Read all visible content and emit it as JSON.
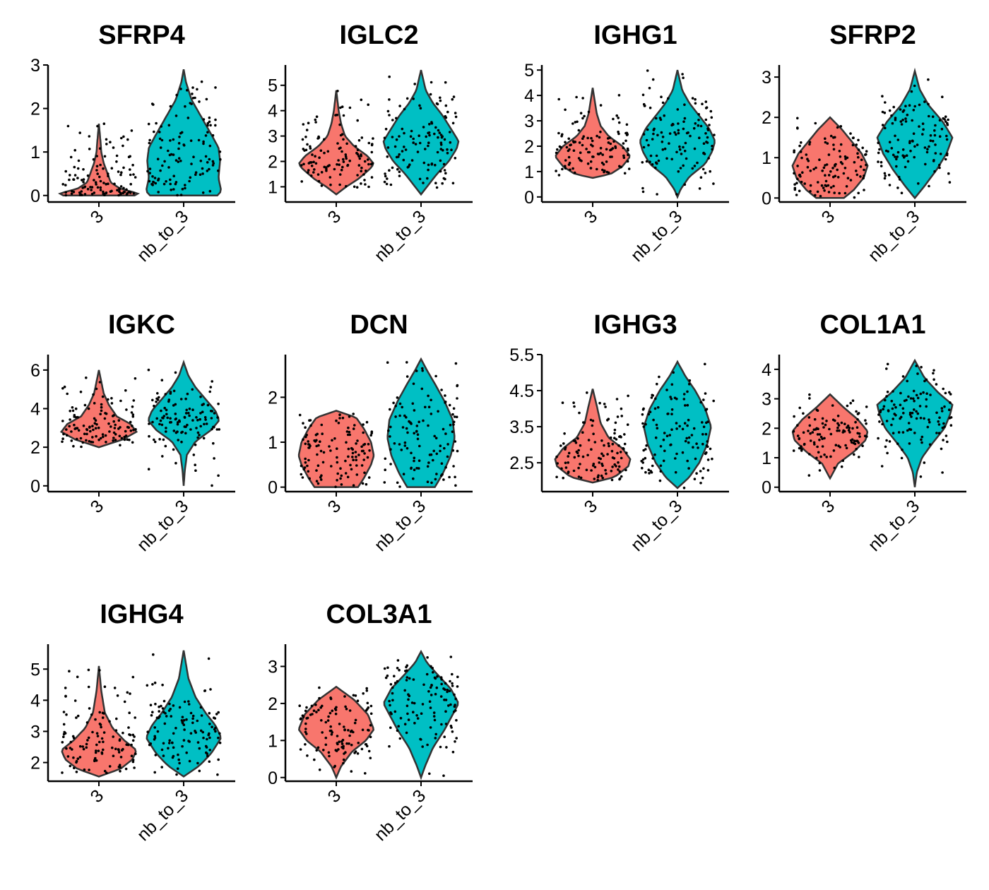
{
  "colors": {
    "group_3": "#F8766D",
    "group_nb_to_3": "#00BFC4",
    "points": "#000000"
  },
  "chart_data": [
    {
      "type": "violin",
      "title": "SFRP4",
      "categories": [
        "3",
        "nb_to_3"
      ],
      "ylim": [
        -0.15,
        3.0
      ],
      "yticks": [
        {
          "v": 0,
          "label": "0"
        },
        {
          "v": 1,
          "label": "1"
        },
        {
          "v": 2,
          "label": "2"
        },
        {
          "v": 3,
          "label": "3"
        }
      ],
      "series": [
        {
          "min": 0,
          "max": 1.65,
          "shape": [
            [
              0,
              0.9
            ],
            [
              0.05,
              1.0
            ],
            [
              0.15,
              0.55
            ],
            [
              0.3,
              0.3
            ],
            [
              0.5,
              0.22
            ],
            [
              0.75,
              0.12
            ],
            [
              1.0,
              0.06
            ],
            [
              1.25,
              0.04
            ],
            [
              1.65,
              0
            ]
          ]
        },
        {
          "min": 0,
          "max": 2.9,
          "shape": [
            [
              0,
              0.85
            ],
            [
              0.1,
              0.95
            ],
            [
              0.4,
              0.88
            ],
            [
              0.8,
              0.92
            ],
            [
              1.1,
              0.88
            ],
            [
              1.4,
              0.7
            ],
            [
              1.8,
              0.45
            ],
            [
              2.2,
              0.2
            ],
            [
              2.6,
              0.06
            ],
            [
              2.9,
              0
            ]
          ]
        }
      ]
    },
    {
      "type": "violin",
      "title": "IGLC2",
      "categories": [
        "3",
        "nb_to_3"
      ],
      "ylim": [
        0.4,
        5.8
      ],
      "yticks": [
        {
          "v": 1,
          "label": "1"
        },
        {
          "v": 2,
          "label": "2"
        },
        {
          "v": 3,
          "label": "3"
        },
        {
          "v": 4,
          "label": "4"
        },
        {
          "v": 5,
          "label": "5"
        }
      ],
      "series": [
        {
          "min": 0.7,
          "max": 4.8,
          "shape": [
            [
              0.7,
              0
            ],
            [
              1.0,
              0.25
            ],
            [
              1.3,
              0.55
            ],
            [
              1.7,
              0.85
            ],
            [
              1.9,
              0.95
            ],
            [
              2.2,
              0.8
            ],
            [
              2.6,
              0.45
            ],
            [
              3.0,
              0.22
            ],
            [
              3.5,
              0.12
            ],
            [
              4.0,
              0.06
            ],
            [
              4.8,
              0
            ]
          ]
        },
        {
          "min": 0.7,
          "max": 5.6,
          "shape": [
            [
              0.7,
              0
            ],
            [
              1.0,
              0.15
            ],
            [
              1.5,
              0.4
            ],
            [
              2.0,
              0.7
            ],
            [
              2.5,
              0.9
            ],
            [
              2.8,
              0.95
            ],
            [
              3.3,
              0.75
            ],
            [
              3.8,
              0.55
            ],
            [
              4.3,
              0.3
            ],
            [
              4.8,
              0.12
            ],
            [
              5.6,
              0
            ]
          ]
        }
      ]
    },
    {
      "type": "violin",
      "title": "IGHG1",
      "categories": [
        "3",
        "nb_to_3"
      ],
      "ylim": [
        -0.2,
        5.2
      ],
      "yticks": [
        {
          "v": 0,
          "label": "0"
        },
        {
          "v": 1,
          "label": "1"
        },
        {
          "v": 2,
          "label": "2"
        },
        {
          "v": 3,
          "label": "3"
        },
        {
          "v": 4,
          "label": "4"
        },
        {
          "v": 5,
          "label": "5"
        }
      ],
      "series": [
        {
          "min": 0.75,
          "max": 4.3,
          "shape": [
            [
              0.75,
              0
            ],
            [
              0.9,
              0.45
            ],
            [
              1.2,
              0.75
            ],
            [
              1.6,
              0.95
            ],
            [
              2.0,
              0.75
            ],
            [
              2.4,
              0.4
            ],
            [
              2.8,
              0.2
            ],
            [
              3.3,
              0.1
            ],
            [
              4.3,
              0
            ]
          ]
        },
        {
          "min": 0,
          "max": 5.0,
          "shape": [
            [
              0,
              0
            ],
            [
              0.3,
              0.08
            ],
            [
              0.8,
              0.3
            ],
            [
              1.3,
              0.7
            ],
            [
              1.8,
              0.88
            ],
            [
              2.2,
              0.95
            ],
            [
              2.7,
              0.8
            ],
            [
              3.2,
              0.55
            ],
            [
              3.7,
              0.3
            ],
            [
              4.2,
              0.12
            ],
            [
              5.0,
              0
            ]
          ]
        }
      ]
    },
    {
      "type": "violin",
      "title": "SFRP2",
      "categories": [
        "3",
        "nb_to_3"
      ],
      "ylim": [
        -0.1,
        3.3
      ],
      "yticks": [
        {
          "v": 0,
          "label": "0"
        },
        {
          "v": 1,
          "label": "1"
        },
        {
          "v": 2,
          "label": "2"
        },
        {
          "v": 3,
          "label": "3"
        }
      ],
      "series": [
        {
          "min": 0,
          "max": 2.0,
          "shape": [
            [
              0,
              0.35
            ],
            [
              0.2,
              0.6
            ],
            [
              0.5,
              0.85
            ],
            [
              0.8,
              0.95
            ],
            [
              1.1,
              0.8
            ],
            [
              1.4,
              0.55
            ],
            [
              1.7,
              0.3
            ],
            [
              2.0,
              0
            ]
          ]
        },
        {
          "min": 0,
          "max": 3.15,
          "shape": [
            [
              0,
              0
            ],
            [
              0.3,
              0.25
            ],
            [
              0.7,
              0.55
            ],
            [
              1.1,
              0.8
            ],
            [
              1.5,
              0.95
            ],
            [
              1.9,
              0.7
            ],
            [
              2.3,
              0.35
            ],
            [
              2.7,
              0.12
            ],
            [
              3.15,
              0
            ]
          ]
        }
      ]
    },
    {
      "type": "violin",
      "title": "IGKC",
      "categories": [
        "3",
        "nb_to_3"
      ],
      "ylim": [
        -0.3,
        6.8
      ],
      "yticks": [
        {
          "v": 0,
          "label": "0"
        },
        {
          "v": 2,
          "label": "2"
        },
        {
          "v": 4,
          "label": "4"
        },
        {
          "v": 6,
          "label": "6"
        }
      ],
      "series": [
        {
          "min": 2.0,
          "max": 6.0,
          "shape": [
            [
              2.0,
              0
            ],
            [
              2.4,
              0.6
            ],
            [
              2.8,
              0.95
            ],
            [
              3.2,
              0.8
            ],
            [
              3.6,
              0.45
            ],
            [
              4.2,
              0.25
            ],
            [
              4.8,
              0.12
            ],
            [
              5.5,
              0.05
            ],
            [
              6.0,
              0
            ]
          ]
        },
        {
          "min": 0,
          "max": 6.4,
          "shape": [
            [
              0,
              0
            ],
            [
              0.8,
              0.03
            ],
            [
              1.6,
              0.08
            ],
            [
              2.3,
              0.3
            ],
            [
              2.9,
              0.7
            ],
            [
              3.4,
              0.9
            ],
            [
              3.9,
              0.8
            ],
            [
              4.5,
              0.55
            ],
            [
              5.1,
              0.3
            ],
            [
              5.7,
              0.12
            ],
            [
              6.4,
              0
            ]
          ]
        }
      ]
    },
    {
      "type": "violin",
      "title": "DCN",
      "categories": [
        "3",
        "nb_to_3"
      ],
      "ylim": [
        -0.1,
        2.95
      ],
      "yticks": [
        {
          "v": 0,
          "label": "0"
        },
        {
          "v": 1,
          "label": "1"
        },
        {
          "v": 2,
          "label": "2"
        }
      ],
      "series": [
        {
          "min": 0,
          "max": 1.7,
          "shape": [
            [
              0,
              0.55
            ],
            [
              0.2,
              0.7
            ],
            [
              0.5,
              0.88
            ],
            [
              0.7,
              0.95
            ],
            [
              1.0,
              0.88
            ],
            [
              1.3,
              0.7
            ],
            [
              1.55,
              0.5
            ],
            [
              1.7,
              0
            ]
          ]
        },
        {
          "min": 0,
          "max": 2.85,
          "shape": [
            [
              0,
              0.35
            ],
            [
              0.3,
              0.55
            ],
            [
              0.7,
              0.75
            ],
            [
              1.1,
              0.85
            ],
            [
              1.5,
              0.8
            ],
            [
              1.9,
              0.6
            ],
            [
              2.3,
              0.35
            ],
            [
              2.6,
              0.15
            ],
            [
              2.85,
              0
            ]
          ]
        }
      ]
    },
    {
      "type": "violin",
      "title": "IGHG3",
      "categories": [
        "3",
        "nb_to_3"
      ],
      "ylim": [
        1.7,
        5.5
      ],
      "yticks": [
        {
          "v": 2.5,
          "label": "2.5"
        },
        {
          "v": 3.5,
          "label": "3.5"
        },
        {
          "v": 4.5,
          "label": "4.5"
        },
        {
          "v": 5.5,
          "label": "5.5"
        }
      ],
      "series": [
        {
          "min": 1.95,
          "max": 4.55,
          "shape": [
            [
              1.95,
              0
            ],
            [
              2.1,
              0.55
            ],
            [
              2.4,
              0.9
            ],
            [
              2.6,
              0.95
            ],
            [
              2.9,
              0.75
            ],
            [
              3.2,
              0.4
            ],
            [
              3.6,
              0.2
            ],
            [
              4.0,
              0.12
            ],
            [
              4.55,
              0
            ]
          ]
        },
        {
          "min": 1.8,
          "max": 5.3,
          "shape": [
            [
              1.8,
              0
            ],
            [
              2.1,
              0.3
            ],
            [
              2.5,
              0.55
            ],
            [
              3.0,
              0.75
            ],
            [
              3.5,
              0.85
            ],
            [
              4.0,
              0.7
            ],
            [
              4.5,
              0.45
            ],
            [
              4.9,
              0.2
            ],
            [
              5.3,
              0
            ]
          ]
        }
      ]
    },
    {
      "type": "violin",
      "title": "COL1A1",
      "categories": [
        "3",
        "nb_to_3"
      ],
      "ylim": [
        -0.15,
        4.5
      ],
      "yticks": [
        {
          "v": 0,
          "label": "0"
        },
        {
          "v": 1,
          "label": "1"
        },
        {
          "v": 2,
          "label": "2"
        },
        {
          "v": 3,
          "label": "3"
        },
        {
          "v": 4,
          "label": "4"
        }
      ],
      "series": [
        {
          "min": 0.3,
          "max": 3.15,
          "shape": [
            [
              0.3,
              0
            ],
            [
              0.8,
              0.2
            ],
            [
              1.2,
              0.6
            ],
            [
              1.6,
              0.9
            ],
            [
              1.9,
              0.95
            ],
            [
              2.3,
              0.7
            ],
            [
              2.7,
              0.35
            ],
            [
              3.15,
              0
            ]
          ]
        },
        {
          "min": 0,
          "max": 4.3,
          "shape": [
            [
              0,
              0
            ],
            [
              0.5,
              0.05
            ],
            [
              1.0,
              0.18
            ],
            [
              1.5,
              0.45
            ],
            [
              2.0,
              0.75
            ],
            [
              2.5,
              0.9
            ],
            [
              2.8,
              0.95
            ],
            [
              3.2,
              0.6
            ],
            [
              3.7,
              0.25
            ],
            [
              4.3,
              0
            ]
          ]
        }
      ]
    },
    {
      "type": "violin",
      "title": "IGHG4",
      "categories": [
        "3",
        "nb_to_3"
      ],
      "ylim": [
        1.4,
        5.8
      ],
      "yticks": [
        {
          "v": 2,
          "label": "2"
        },
        {
          "v": 3,
          "label": "3"
        },
        {
          "v": 4,
          "label": "4"
        },
        {
          "v": 5,
          "label": "5"
        }
      ],
      "series": [
        {
          "min": 1.55,
          "max": 5.1,
          "shape": [
            [
              1.55,
              0
            ],
            [
              1.8,
              0.55
            ],
            [
              2.1,
              0.85
            ],
            [
              2.4,
              0.95
            ],
            [
              2.7,
              0.65
            ],
            [
              3.1,
              0.35
            ],
            [
              3.6,
              0.15
            ],
            [
              4.3,
              0.06
            ],
            [
              5.1,
              0
            ]
          ]
        },
        {
          "min": 1.55,
          "max": 5.6,
          "shape": [
            [
              1.55,
              0
            ],
            [
              1.9,
              0.4
            ],
            [
              2.3,
              0.7
            ],
            [
              2.8,
              0.95
            ],
            [
              3.2,
              0.8
            ],
            [
              3.6,
              0.55
            ],
            [
              4.1,
              0.3
            ],
            [
              4.7,
              0.12
            ],
            [
              5.6,
              0
            ]
          ]
        }
      ]
    },
    {
      "type": "violin",
      "title": "COL3A1",
      "categories": [
        "3",
        "nb_to_3"
      ],
      "ylim": [
        -0.1,
        3.6
      ],
      "yticks": [
        {
          "v": 0,
          "label": "0"
        },
        {
          "v": 1,
          "label": "1"
        },
        {
          "v": 2,
          "label": "2"
        },
        {
          "v": 3,
          "label": "3"
        }
      ],
      "series": [
        {
          "min": 0,
          "max": 2.45,
          "shape": [
            [
              0,
              0
            ],
            [
              0.3,
              0.12
            ],
            [
              0.7,
              0.4
            ],
            [
              1.0,
              0.75
            ],
            [
              1.3,
              0.95
            ],
            [
              1.7,
              0.8
            ],
            [
              2.1,
              0.45
            ],
            [
              2.45,
              0
            ]
          ]
        },
        {
          "min": 0,
          "max": 3.4,
          "shape": [
            [
              0,
              0
            ],
            [
              0.3,
              0.1
            ],
            [
              0.8,
              0.3
            ],
            [
              1.3,
              0.6
            ],
            [
              1.8,
              0.85
            ],
            [
              2.0,
              0.95
            ],
            [
              2.4,
              0.75
            ],
            [
              2.8,
              0.4
            ],
            [
              3.1,
              0.15
            ],
            [
              3.4,
              0
            ]
          ]
        }
      ]
    }
  ]
}
